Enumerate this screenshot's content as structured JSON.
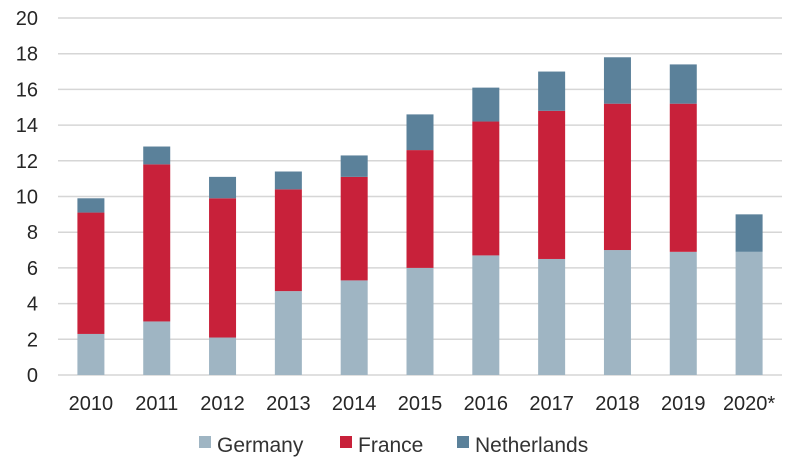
{
  "chart_data": {
    "type": "bar",
    "stacked": true,
    "categories": [
      "2010",
      "2011",
      "2012",
      "2013",
      "2014",
      "2015",
      "2016",
      "2017",
      "2018",
      "2019",
      "2020*"
    ],
    "series": [
      {
        "name": "Germany",
        "color": "#9fb5c3",
        "values": [
          2.3,
          3.0,
          2.1,
          4.7,
          5.3,
          6.0,
          6.7,
          6.5,
          7.0,
          6.9,
          6.9
        ]
      },
      {
        "name": "France",
        "color": "#c8213a",
        "values": [
          6.8,
          8.8,
          7.8,
          5.7,
          5.8,
          6.6,
          7.5,
          8.3,
          8.2,
          8.3,
          0
        ]
      },
      {
        "name": "Netherlands",
        "color": "#5b819a",
        "values": [
          0.8,
          1.0,
          1.2,
          1.0,
          1.2,
          2.0,
          1.9,
          2.2,
          2.6,
          2.2,
          2.1
        ]
      }
    ],
    "ylim": [
      0,
      20
    ],
    "yticks": [
      "0",
      "2",
      "4",
      "6",
      "8",
      "10",
      "12",
      "14",
      "16",
      "18",
      "20"
    ],
    "grid": true,
    "legend_position": "bottom",
    "title": "",
    "xlabel": "",
    "ylabel": ""
  }
}
